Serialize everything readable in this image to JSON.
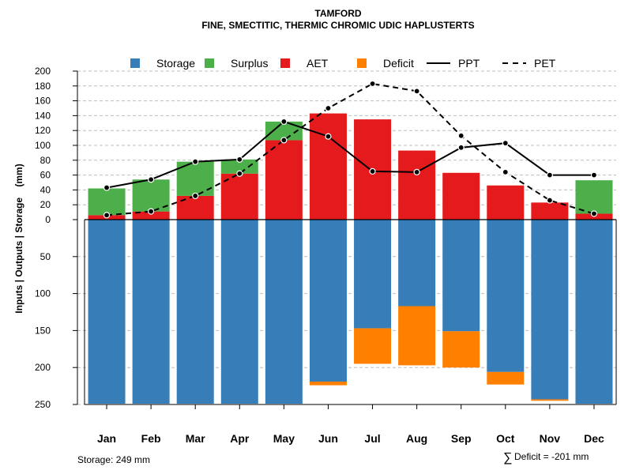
{
  "chart_data": {
    "type": "bar",
    "title": "TAMFORD",
    "subtitle": "FINE, SMECTITIC, THERMIC CHROMIC UDIC HAPLUSTERTS",
    "ylabel": "Inputs | Outputs | Storage    (mm)",
    "categories": [
      "Jan",
      "Feb",
      "Mar",
      "Apr",
      "May",
      "Jun",
      "Jul",
      "Aug",
      "Sep",
      "Oct",
      "Nov",
      "Dec"
    ],
    "upper_axis": {
      "ylim": [
        0,
        200
      ],
      "ticks": [
        "0",
        "20",
        "40",
        "60",
        "80",
        "100",
        "120",
        "140",
        "160",
        "180",
        "200"
      ]
    },
    "lower_axis": {
      "ylim": [
        0,
        250
      ],
      "ticks": [
        "0",
        "50",
        "100",
        "150",
        "200",
        "250"
      ]
    },
    "series": [
      {
        "name": "Storage",
        "color": "#377EB8",
        "values": [
          249,
          249,
          249,
          249,
          249,
          219,
          147,
          117,
          151,
          206,
          243,
          249
        ]
      },
      {
        "name": "Surplus",
        "color": "#4DAF4A",
        "values": [
          36,
          43,
          46,
          19,
          25,
          0,
          0,
          0,
          0,
          0,
          0,
          45
        ]
      },
      {
        "name": "AET",
        "color": "#E41A1C",
        "values": [
          6,
          11,
          32,
          62,
          107,
          143,
          135,
          93,
          63,
          46,
          23,
          8
        ]
      },
      {
        "name": "Deficit",
        "color": "#FF7F00",
        "values": [
          0,
          0,
          0,
          0,
          0,
          5,
          48,
          80,
          49,
          17,
          2,
          0
        ]
      },
      {
        "name": "PPT",
        "color": "#000000",
        "values": [
          43,
          54,
          78,
          81,
          132,
          112,
          65,
          64,
          97,
          103,
          60,
          60
        ]
      },
      {
        "name": "PET",
        "color": "#000000",
        "values": [
          6,
          11,
          32,
          62,
          107,
          150,
          183,
          173,
          113,
          64,
          26,
          8
        ]
      }
    ],
    "legend_position": "top",
    "footer_left": "Storage: 249 mm",
    "footer_right_symbol": "∑",
    "footer_right": "Deficit = -201 mm"
  }
}
